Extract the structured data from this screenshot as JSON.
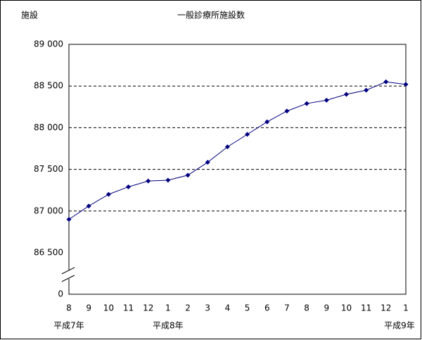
{
  "chart_data": {
    "type": "line",
    "title": "一般診療所施設数",
    "y_label": "施設",
    "categories": [
      "8",
      "9",
      "10",
      "11",
      "12",
      "1",
      "2",
      "3",
      "4",
      "5",
      "6",
      "7",
      "8",
      "9",
      "10",
      "11",
      "12",
      "1"
    ],
    "x_sublabels": [
      "平成7年",
      null,
      null,
      null,
      null,
      "平成8年",
      null,
      null,
      null,
      null,
      null,
      null,
      null,
      null,
      null,
      null,
      null,
      "平成9年"
    ],
    "series": [
      {
        "name": "一般診療所施設数",
        "color": "#000080",
        "values": [
          86900,
          87060,
          87200,
          87290,
          87360,
          87370,
          87430,
          87585,
          87770,
          87920,
          88070,
          88200,
          88290,
          88330,
          88400,
          88450,
          88550,
          88520
        ]
      }
    ],
    "ylim": [
      0,
      89000
    ],
    "y_break": [
      0,
      86500
    ],
    "yticks": [
      0,
      {
        "value": 86500,
        "label": "86 500"
      },
      {
        "value": 87000,
        "label": "87 000"
      },
      {
        "value": 87500,
        "label": "87 500"
      },
      {
        "value": 88000,
        "label": "88 000"
      },
      {
        "value": 88500,
        "label": "88 500"
      },
      {
        "value": 89000,
        "label": "89 000"
      }
    ],
    "grid": true
  }
}
